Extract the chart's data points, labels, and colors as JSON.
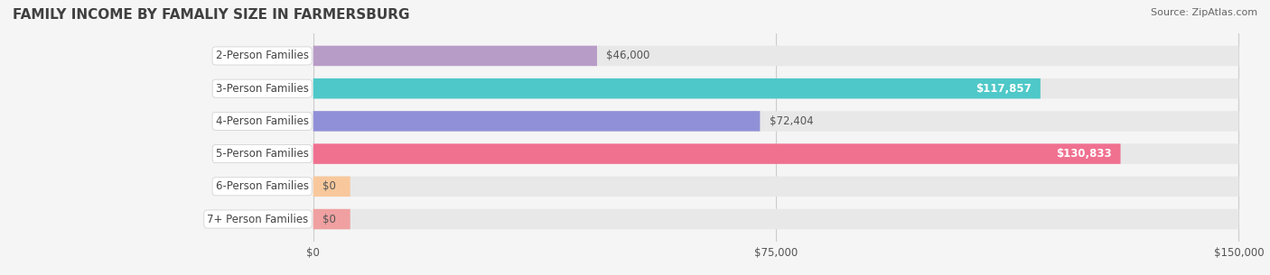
{
  "title": "FAMILY INCOME BY FAMALIY SIZE IN FARMERSBURG",
  "source": "Source: ZipAtlas.com",
  "categories": [
    "2-Person Families",
    "3-Person Families",
    "4-Person Families",
    "5-Person Families",
    "6-Person Families",
    "7+ Person Families"
  ],
  "values": [
    46000,
    117857,
    72404,
    130833,
    0,
    0
  ],
  "value_labels": [
    "$46,000",
    "$117,857",
    "$72,404",
    "$130,833",
    "$0",
    "$0"
  ],
  "bar_colors": [
    "#b89cc8",
    "#4ec8c8",
    "#9090d8",
    "#f07090",
    "#f8c89c",
    "#f0a0a0"
  ],
  "bar_bg_color": "#e8e8e8",
  "label_bg_color": "#ffffff",
  "xmax": 150000,
  "xticks": [
    0,
    75000,
    150000
  ],
  "xtick_labels": [
    "$0",
    "$75,000",
    "$150,000"
  ],
  "fig_bg_color": "#f5f5f5",
  "title_color": "#404040",
  "title_fontsize": 11,
  "label_fontsize": 8.5,
  "value_fontsize": 8.5,
  "source_fontsize": 8
}
